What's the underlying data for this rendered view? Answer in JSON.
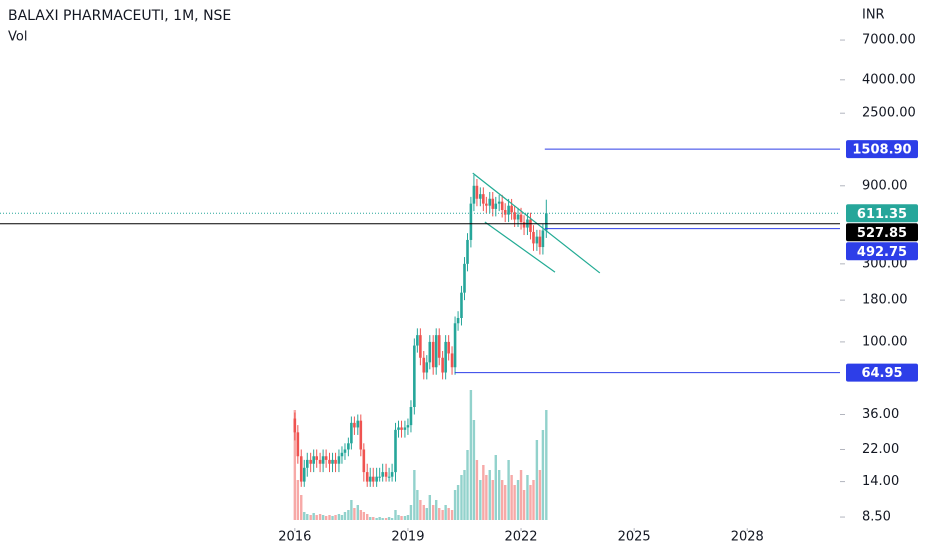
{
  "chart_data": {
    "type": "candlestick",
    "title": "BALAXI PHARMACEUTI, 1M, NSE",
    "volume_label": "Vol",
    "currency": "INR",
    "log_scale": true,
    "grid": false,
    "up_color": "#26a69a",
    "down_color": "#ef5350",
    "xlim": [
      2008.18,
      2030.46
    ],
    "xticks": [
      2016,
      2019,
      2022,
      2025,
      2028
    ],
    "ylim": [
      7.6,
      12300
    ],
    "yticks": [
      {
        "value": 7000,
        "label": "7000.00"
      },
      {
        "value": 4000,
        "label": "4000.00"
      },
      {
        "value": 2500,
        "label": "2500.00"
      },
      {
        "value": 900,
        "label": "900.00"
      },
      {
        "value": 300,
        "label": "300.00"
      },
      {
        "value": 180,
        "label": "180.00"
      },
      {
        "value": 100,
        "label": "100.00"
      },
      {
        "value": 36,
        "label": "36.00"
      },
      {
        "value": 22,
        "label": "22.00"
      },
      {
        "value": 14,
        "label": "14.00"
      },
      {
        "value": 8.5,
        "label": "8.50"
      }
    ],
    "x": [
      2016,
      2016.08,
      2016.17,
      2016.25,
      2016.33,
      2016.42,
      2016.5,
      2016.58,
      2016.67,
      2016.75,
      2016.83,
      2016.92,
      2017,
      2017.08,
      2017.17,
      2017.25,
      2017.33,
      2017.42,
      2017.5,
      2017.58,
      2017.67,
      2017.75,
      2017.83,
      2017.92,
      2018,
      2018.08,
      2018.17,
      2018.25,
      2018.33,
      2018.42,
      2018.5,
      2018.58,
      2018.67,
      2018.75,
      2018.83,
      2018.92,
      2019,
      2019.08,
      2019.17,
      2019.25,
      2019.33,
      2019.42,
      2019.5,
      2019.58,
      2019.67,
      2019.75,
      2019.83,
      2019.92,
      2020,
      2020.08,
      2020.17,
      2020.25,
      2020.33,
      2020.42,
      2020.5,
      2020.58,
      2020.67,
      2020.75,
      2020.83,
      2020.92,
      2021,
      2021.08,
      2021.17,
      2021.25,
      2021.33,
      2021.42,
      2021.5,
      2021.58,
      2021.67,
      2021.75,
      2021.83,
      2021.92,
      2022,
      2022.08,
      2022.17,
      2022.25,
      2022.33,
      2022.42,
      2022.5,
      2022.58,
      2022.67
    ],
    "open": [
      34,
      28,
      20,
      14,
      17,
      19,
      18,
      20,
      19,
      18,
      20,
      19,
      18,
      19,
      18,
      20,
      21,
      22,
      24,
      32,
      30,
      33,
      22,
      16,
      14,
      15,
      14,
      15,
      15,
      16,
      15,
      15,
      16,
      29,
      30,
      29,
      30,
      31,
      40,
      95,
      110,
      80,
      65,
      75,
      100,
      70,
      110,
      80,
      65,
      100,
      85,
      70,
      130,
      140,
      200,
      300,
      420,
      700,
      900,
      750,
      800,
      700,
      680,
      750,
      650,
      700,
      720,
      640,
      600,
      680,
      620,
      560,
      600,
      540,
      500,
      560,
      470,
      400,
      440,
      380,
      480
    ],
    "high": [
      37,
      31,
      22,
      19,
      21,
      21,
      22,
      22,
      21,
      22,
      22,
      21,
      21,
      21,
      22,
      23,
      24,
      26,
      35,
      35,
      36,
      36,
      24,
      18,
      17,
      17,
      17,
      17,
      18,
      18,
      17,
      18,
      32,
      33,
      33,
      33,
      34,
      44,
      105,
      121,
      121,
      88,
      83,
      110,
      110,
      121,
      121,
      88,
      110,
      110,
      94,
      143,
      154,
      220,
      330,
      462,
      770,
      1050,
      990,
      880,
      880,
      770,
      825,
      825,
      770,
      792,
      792,
      704,
      748,
      748,
      682,
      660,
      660,
      594,
      616,
      616,
      517,
      484,
      484,
      528,
      740
    ],
    "low": [
      25,
      18,
      13,
      13,
      15,
      16,
      16,
      17,
      16,
      16,
      17,
      16,
      16,
      16,
      16,
      18,
      19,
      20,
      22,
      27,
      27,
      20,
      14,
      13,
      13,
      13,
      13,
      14,
      14,
      14,
      14,
      14,
      14,
      26,
      26,
      26,
      27,
      28,
      36,
      86,
      72,
      59,
      59,
      68,
      63,
      63,
      72,
      59,
      59,
      77,
      63,
      63,
      117,
      126,
      180,
      270,
      378,
      630,
      675,
      675,
      630,
      612,
      612,
      585,
      585,
      630,
      576,
      540,
      540,
      558,
      504,
      504,
      486,
      450,
      450,
      423,
      360,
      360,
      342,
      342,
      432
    ],
    "close": [
      28,
      20,
      14,
      17,
      19,
      18,
      20,
      19,
      18,
      20,
      19,
      18,
      19,
      18,
      20,
      21,
      22,
      24,
      32,
      30,
      33,
      22,
      16,
      14,
      15,
      14,
      15,
      15,
      16,
      15,
      15,
      16,
      29,
      30,
      29,
      30,
      31,
      40,
      95,
      110,
      80,
      65,
      75,
      100,
      70,
      110,
      80,
      65,
      100,
      85,
      70,
      130,
      140,
      200,
      300,
      420,
      700,
      900,
      750,
      800,
      700,
      680,
      750,
      650,
      700,
      720,
      640,
      600,
      680,
      620,
      560,
      600,
      540,
      500,
      560,
      470,
      400,
      440,
      380,
      480,
      611.35
    ],
    "volume": [
      110,
      40,
      25,
      8,
      6,
      5,
      7,
      5,
      6,
      5,
      4,
      5,
      4,
      5,
      6,
      5,
      8,
      10,
      20,
      12,
      15,
      10,
      8,
      6,
      3,
      3,
      2,
      3,
      2,
      2,
      3,
      2,
      10,
      5,
      4,
      4,
      5,
      15,
      50,
      30,
      20,
      15,
      12,
      25,
      15,
      20,
      12,
      10,
      15,
      12,
      10,
      30,
      35,
      45,
      50,
      70,
      130,
      100,
      60,
      40,
      55,
      45,
      50,
      40,
      65,
      50,
      40,
      35,
      60,
      45,
      35,
      40,
      50,
      30,
      45,
      35,
      40,
      80,
      50,
      90,
      110
    ],
    "trendlines": [
      {
        "x": [
          2020.72,
          2024.09
        ],
        "y": [
          1076,
          264
        ],
        "color": "#22ab94"
      },
      {
        "x": [
          2021.04,
          2022.9
        ],
        "y": [
          541,
          267
        ],
        "color": "#22ab94"
      }
    ],
    "levels": [
      {
        "value": 1508.9,
        "label": "1508.90",
        "color": "#2d3ee8",
        "start": 2022.63
      },
      {
        "value": 611.35,
        "label": "611.35",
        "color": "#26a69a",
        "style": "dotted"
      },
      {
        "value": 527.85,
        "label": "527.85",
        "color": "#000000"
      },
      {
        "value": 492.75,
        "label": "492.75",
        "color": "#2d3ee8",
        "start": 2022.63
      },
      {
        "value": 64.95,
        "label": "64.95",
        "color": "#2d3ee8",
        "start": 2020.24
      }
    ]
  }
}
